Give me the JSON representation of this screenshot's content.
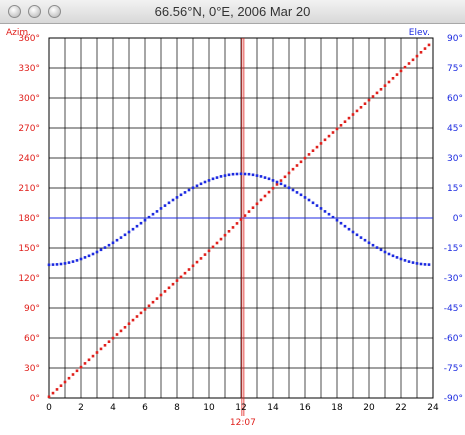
{
  "window": {
    "title": "66.56°N, 0°E, 2006 Mar 20",
    "buttons": [
      "close",
      "minimize",
      "zoom"
    ]
  },
  "colors": {
    "azimuth": "#e0201c",
    "elevation": "#1c2ae0",
    "grid": "#000000",
    "background": "#ffffff"
  },
  "chart_data": {
    "type": "scatter",
    "x": [
      0,
      0.25,
      0.5,
      0.75,
      1,
      1.25,
      1.5,
      1.75,
      2,
      2.25,
      2.5,
      2.75,
      3,
      3.25,
      3.5,
      3.75,
      4,
      4.25,
      4.5,
      4.75,
      5,
      5.25,
      5.5,
      5.75,
      6,
      6.25,
      6.5,
      6.75,
      7,
      7.25,
      7.5,
      7.75,
      8,
      8.25,
      8.5,
      8.75,
      9,
      9.25,
      9.5,
      9.75,
      10,
      10.25,
      10.5,
      10.75,
      11,
      11.25,
      11.5,
      11.75,
      12,
      12.25,
      12.5,
      12.75,
      13,
      13.25,
      13.5,
      13.75,
      14,
      14.25,
      14.5,
      14.75,
      15,
      15.25,
      15.5,
      15.75,
      16,
      16.25,
      16.5,
      16.75,
      17,
      17.25,
      17.5,
      17.75,
      18,
      18.25,
      18.5,
      18.75,
      19,
      19.25,
      19.5,
      19.75,
      20,
      20.25,
      20.5,
      20.75,
      21,
      21.25,
      21.5,
      21.75,
      22,
      22.25,
      22.5,
      22.75,
      23,
      23.25,
      23.5,
      23.75
    ],
    "xlim": [
      0,
      24
    ],
    "xticks": [
      "0",
      "2",
      "4",
      "6",
      "8",
      "10",
      "12",
      "14",
      "16",
      "18",
      "20",
      "22",
      "24"
    ],
    "x_marker": {
      "value": 12.117,
      "label": "12:07"
    },
    "series": [
      {
        "name": "Azim.",
        "axis": "left",
        "color": "#e0201c",
        "values": [
          1.2,
          4.9,
          8.6,
          12.3,
          16.0,
          19.8,
          23.5,
          27.2,
          30.9,
          34.6,
          38.2,
          41.9,
          45.5,
          49.1,
          52.7,
          56.3,
          59.9,
          63.5,
          67.1,
          70.7,
          74.3,
          77.9,
          81.5,
          85.1,
          88.6,
          92.2,
          95.8,
          99.4,
          103.0,
          106.6,
          110.2,
          113.8,
          117.4,
          121.1,
          124.8,
          128.5,
          132.2,
          135.9,
          139.6,
          143.4,
          147.2,
          151.1,
          155.0,
          158.9,
          162.8,
          166.7,
          170.6,
          174.6,
          178.5,
          182.4,
          186.4,
          190.3,
          194.2,
          198.1,
          202.0,
          205.9,
          209.8,
          213.6,
          217.4,
          221.2,
          225.0,
          228.8,
          232.5,
          236.2,
          239.9,
          243.6,
          247.3,
          250.9,
          254.6,
          258.2,
          261.9,
          265.5,
          269.1,
          272.7,
          276.3,
          279.9,
          283.5,
          287.1,
          290.7,
          294.3,
          297.9,
          301.5,
          305.1,
          308.7,
          312.3,
          316.0,
          319.7,
          323.4,
          327.1,
          330.8,
          334.5,
          338.2,
          341.9,
          345.7,
          349.4,
          353.1
        ]
      },
      {
        "name": "Elev.",
        "axis": "right",
        "color": "#1c2ae0",
        "values": [
          -23.4,
          -23.3,
          -23.2,
          -23.0,
          -22.7,
          -22.3,
          -21.8,
          -21.2,
          -20.5,
          -19.7,
          -18.9,
          -18.0,
          -17.0,
          -15.9,
          -14.8,
          -13.6,
          -12.4,
          -11.1,
          -9.8,
          -8.4,
          -7.0,
          -5.6,
          -4.1,
          -2.6,
          -1.1,
          0.4,
          1.9,
          3.3,
          4.8,
          6.2,
          7.6,
          9.0,
          10.3,
          11.6,
          12.8,
          14.0,
          15.1,
          16.1,
          17.1,
          18.0,
          18.8,
          19.6,
          20.2,
          20.8,
          21.2,
          21.6,
          21.9,
          22.0,
          22.1,
          22.0,
          21.9,
          21.6,
          21.2,
          20.8,
          20.2,
          19.6,
          18.8,
          18.0,
          17.1,
          16.1,
          15.1,
          14.0,
          12.8,
          11.6,
          10.3,
          9.0,
          7.6,
          6.2,
          4.8,
          3.3,
          1.9,
          0.4,
          -1.1,
          -2.6,
          -4.1,
          -5.6,
          -7.0,
          -8.4,
          -9.8,
          -11.1,
          -12.4,
          -13.6,
          -14.8,
          -15.9,
          -17.0,
          -18.0,
          -18.9,
          -19.7,
          -20.5,
          -21.2,
          -21.8,
          -22.3,
          -22.7,
          -23.0,
          -23.2,
          -23.3
        ]
      }
    ],
    "left_axis": {
      "label": "Azim.",
      "ylim": [
        0,
        360
      ],
      "ticks": [
        "0°",
        "30°",
        "60°",
        "90°",
        "120°",
        "150°",
        "180°",
        "210°",
        "240°",
        "270°",
        "300°",
        "330°",
        "360°"
      ]
    },
    "right_axis": {
      "label": "Elev.",
      "ylim": [
        -90,
        90
      ],
      "ticks": [
        "-90°",
        "-75°",
        "-60°",
        "-45°",
        "-30°",
        "-15°",
        "0°",
        "15°",
        "30°",
        "45°",
        "60°",
        "75°",
        "90°"
      ]
    },
    "horizon_line": 0,
    "grid": true
  }
}
